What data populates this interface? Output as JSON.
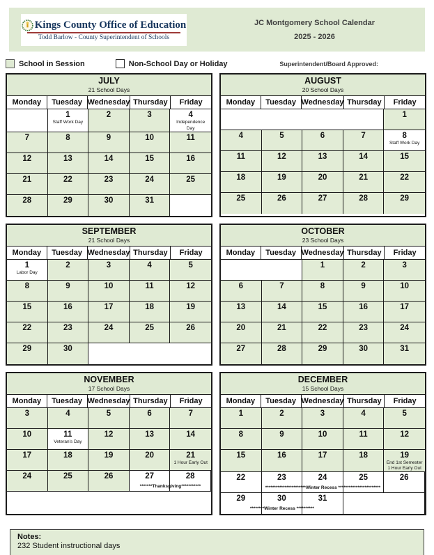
{
  "header": {
    "org_name": "Kings County Office of Education",
    "org_subtitle": "Todd Barlow - County Superintendent of Schools",
    "title_line1": "JC Montgomery School Calendar",
    "title_line2": "2025 - 2026"
  },
  "legend": {
    "in_session_label": "School in Session",
    "non_school_label": "Non-School Day or Holiday",
    "approved_label": "Superintendent/Board Approved:"
  },
  "weekdays": [
    "Monday",
    "Tuesday",
    "Wednesday",
    "Thursday",
    "Friday"
  ],
  "colors": {
    "session_green": "#e2ecd6",
    "banner_green": "#dfead3",
    "org_blue": "#17365d",
    "divider_red": "#9e3a38"
  },
  "months": [
    {
      "name": "JULY",
      "days_label": "21 School Days",
      "rows": [
        {
          "cells": [
            {
              "d": "",
              "bg": "w"
            },
            {
              "d": "1",
              "bg": "w",
              "note": [
                "Staff Work Day"
              ]
            },
            {
              "d": "2",
              "bg": "g"
            },
            {
              "d": "3",
              "bg": "g"
            },
            {
              "d": "4",
              "bg": "w",
              "note": [
                "Independence",
                "Day"
              ]
            }
          ]
        },
        {
          "cells": [
            {
              "d": "7",
              "bg": "g"
            },
            {
              "d": "8",
              "bg": "g"
            },
            {
              "d": "9",
              "bg": "g"
            },
            {
              "d": "10",
              "bg": "g"
            },
            {
              "d": "11",
              "bg": "g"
            }
          ]
        },
        {
          "cells": [
            {
              "d": "12",
              "bg": "g"
            },
            {
              "d": "13",
              "bg": "g"
            },
            {
              "d": "14",
              "bg": "g"
            },
            {
              "d": "15",
              "bg": "g"
            },
            {
              "d": "16",
              "bg": "g"
            }
          ]
        },
        {
          "cells": [
            {
              "d": "21",
              "bg": "g"
            },
            {
              "d": "22",
              "bg": "g"
            },
            {
              "d": "23",
              "bg": "g"
            },
            {
              "d": "24",
              "bg": "g"
            },
            {
              "d": "25",
              "bg": "g"
            }
          ]
        },
        {
          "cells": [
            {
              "d": "28",
              "bg": "g"
            },
            {
              "d": "29",
              "bg": "g"
            },
            {
              "d": "30",
              "bg": "g"
            },
            {
              "d": "31",
              "bg": "g"
            },
            {
              "d": "",
              "bg": "w"
            }
          ]
        }
      ]
    },
    {
      "name": "AUGUST",
      "days_label": "20 School Days",
      "rows": [
        {
          "cells": [
            {
              "d": "",
              "bg": "w",
              "span": 4
            },
            {
              "d": "1",
              "bg": "g"
            }
          ]
        },
        {
          "cells": [
            {
              "d": "4",
              "bg": "g"
            },
            {
              "d": "5",
              "bg": "g"
            },
            {
              "d": "6",
              "bg": "g"
            },
            {
              "d": "7",
              "bg": "g"
            },
            {
              "d": "8",
              "bg": "w",
              "note": [
                "Staff Work Day"
              ]
            }
          ]
        },
        {
          "cells": [
            {
              "d": "11",
              "bg": "g"
            },
            {
              "d": "12",
              "bg": "g"
            },
            {
              "d": "13",
              "bg": "g"
            },
            {
              "d": "14",
              "bg": "g"
            },
            {
              "d": "15",
              "bg": "g"
            }
          ]
        },
        {
          "cells": [
            {
              "d": "18",
              "bg": "g"
            },
            {
              "d": "19",
              "bg": "g"
            },
            {
              "d": "20",
              "bg": "g"
            },
            {
              "d": "21",
              "bg": "g"
            },
            {
              "d": "22",
              "bg": "g"
            }
          ]
        },
        {
          "cells": [
            {
              "d": "25",
              "bg": "g"
            },
            {
              "d": "26",
              "bg": "g"
            },
            {
              "d": "27",
              "bg": "g"
            },
            {
              "d": "28",
              "bg": "g"
            },
            {
              "d": "29",
              "bg": "g"
            }
          ]
        }
      ]
    },
    {
      "name": "SEPTEMBER",
      "days_label": "21 School Days",
      "rows": [
        {
          "cells": [
            {
              "d": "1",
              "bg": "w",
              "note": [
                "Labor Day"
              ]
            },
            {
              "d": "2",
              "bg": "g"
            },
            {
              "d": "3",
              "bg": "g"
            },
            {
              "d": "4",
              "bg": "g"
            },
            {
              "d": "5",
              "bg": "g"
            }
          ]
        },
        {
          "cells": [
            {
              "d": "8",
              "bg": "g"
            },
            {
              "d": "9",
              "bg": "g"
            },
            {
              "d": "10",
              "bg": "g"
            },
            {
              "d": "11",
              "bg": "g"
            },
            {
              "d": "12",
              "bg": "g"
            }
          ]
        },
        {
          "cells": [
            {
              "d": "15",
              "bg": "g"
            },
            {
              "d": "16",
              "bg": "g"
            },
            {
              "d": "17",
              "bg": "g"
            },
            {
              "d": "18",
              "bg": "g"
            },
            {
              "d": "19",
              "bg": "g"
            }
          ]
        },
        {
          "cells": [
            {
              "d": "22",
              "bg": "g"
            },
            {
              "d": "23",
              "bg": "g"
            },
            {
              "d": "24",
              "bg": "g"
            },
            {
              "d": "25",
              "bg": "g"
            },
            {
              "d": "26",
              "bg": "g"
            }
          ]
        },
        {
          "cells": [
            {
              "d": "29",
              "bg": "g"
            },
            {
              "d": "30",
              "bg": "g"
            },
            {
              "d": "",
              "bg": "w",
              "span": 3
            }
          ]
        }
      ]
    },
    {
      "name": "OCTOBER",
      "days_label": "23 School Days",
      "rows": [
        {
          "cells": [
            {
              "d": "",
              "bg": "w",
              "span": 2
            },
            {
              "d": "1",
              "bg": "g"
            },
            {
              "d": "2",
              "bg": "g"
            },
            {
              "d": "3",
              "bg": "g"
            }
          ]
        },
        {
          "cells": [
            {
              "d": "6",
              "bg": "g"
            },
            {
              "d": "7",
              "bg": "g"
            },
            {
              "d": "8",
              "bg": "g"
            },
            {
              "d": "9",
              "bg": "g"
            },
            {
              "d": "10",
              "bg": "g"
            }
          ]
        },
        {
          "cells": [
            {
              "d": "13",
              "bg": "g"
            },
            {
              "d": "14",
              "bg": "g"
            },
            {
              "d": "15",
              "bg": "g"
            },
            {
              "d": "16",
              "bg": "g"
            },
            {
              "d": "17",
              "bg": "g"
            }
          ]
        },
        {
          "cells": [
            {
              "d": "20",
              "bg": "g"
            },
            {
              "d": "21",
              "bg": "g"
            },
            {
              "d": "22",
              "bg": "g"
            },
            {
              "d": "23",
              "bg": "g"
            },
            {
              "d": "24",
              "bg": "g"
            }
          ]
        },
        {
          "cells": [
            {
              "d": "27",
              "bg": "g"
            },
            {
              "d": "28",
              "bg": "g"
            },
            {
              "d": "29",
              "bg": "g"
            },
            {
              "d": "30",
              "bg": "g"
            },
            {
              "d": "31",
              "bg": "g"
            }
          ]
        }
      ]
    },
    {
      "name": "NOVEMBER",
      "days_label": "17 School Days",
      "rows": [
        {
          "cells": [
            {
              "d": "3",
              "bg": "g"
            },
            {
              "d": "4",
              "bg": "g"
            },
            {
              "d": "5",
              "bg": "g"
            },
            {
              "d": "6",
              "bg": "g"
            },
            {
              "d": "7",
              "bg": "g"
            }
          ]
        },
        {
          "cells": [
            {
              "d": "10",
              "bg": "g"
            },
            {
              "d": "11",
              "bg": "w",
              "note": [
                "Veteran's Day"
              ]
            },
            {
              "d": "12",
              "bg": "g"
            },
            {
              "d": "13",
              "bg": "g"
            },
            {
              "d": "14",
              "bg": "g"
            }
          ]
        },
        {
          "cells": [
            {
              "d": "17",
              "bg": "g"
            },
            {
              "d": "18",
              "bg": "g"
            },
            {
              "d": "19",
              "bg": "g"
            },
            {
              "d": "20",
              "bg": "g"
            },
            {
              "d": "21",
              "bg": "g",
              "note": [
                "1 Hour Early Out"
              ]
            }
          ]
        },
        {
          "cells": [
            {
              "d": "24",
              "bg": "g"
            },
            {
              "d": "25",
              "bg": "g"
            },
            {
              "d": "26",
              "bg": "g"
            },
            {
              "d": "27",
              "bg": "w"
            },
            {
              "d": "28",
              "bg": "w"
            }
          ],
          "overlay": {
            "text": "*******Thanksgiving***********",
            "start": 3,
            "cols": 2
          }
        },
        {
          "cells": [
            {
              "d": "",
              "bg": "w",
              "span": 5
            }
          ]
        }
      ]
    },
    {
      "name": "DECEMBER",
      "days_label": "15 School Days",
      "rows": [
        {
          "cells": [
            {
              "d": "1",
              "bg": "g"
            },
            {
              "d": "2",
              "bg": "g"
            },
            {
              "d": "3",
              "bg": "g"
            },
            {
              "d": "4",
              "bg": "g"
            },
            {
              "d": "5",
              "bg": "g"
            }
          ]
        },
        {
          "cells": [
            {
              "d": "8",
              "bg": "g"
            },
            {
              "d": "9",
              "bg": "g"
            },
            {
              "d": "10",
              "bg": "g"
            },
            {
              "d": "11",
              "bg": "g"
            },
            {
              "d": "12",
              "bg": "g"
            }
          ]
        },
        {
          "cells": [
            {
              "d": "15",
              "bg": "g"
            },
            {
              "d": "16",
              "bg": "g"
            },
            {
              "d": "17",
              "bg": "g"
            },
            {
              "d": "18",
              "bg": "g"
            },
            {
              "d": "19",
              "bg": "g",
              "note": [
                "End 1st Semester",
                "1 Hour Early Out"
              ]
            }
          ]
        },
        {
          "cells": [
            {
              "d": "22",
              "bg": "w"
            },
            {
              "d": "23",
              "bg": "w"
            },
            {
              "d": "24",
              "bg": "w"
            },
            {
              "d": "25",
              "bg": "w"
            },
            {
              "d": "26",
              "bg": "w"
            }
          ],
          "overlay": {
            "text": "***********************Winter Recess ************************",
            "start": 0,
            "cols": 5
          }
        },
        {
          "cells": [
            {
              "d": "29",
              "bg": "w"
            },
            {
              "d": "30",
              "bg": "w"
            },
            {
              "d": "31",
              "bg": "w"
            },
            {
              "d": "",
              "bg": "w",
              "span": 2
            }
          ],
          "overlay": {
            "text": "********Winter Recess **********",
            "start": 0,
            "cols": 3
          }
        }
      ]
    }
  ],
  "notes": {
    "label": "Notes:",
    "body": "232 Student instructional days"
  }
}
